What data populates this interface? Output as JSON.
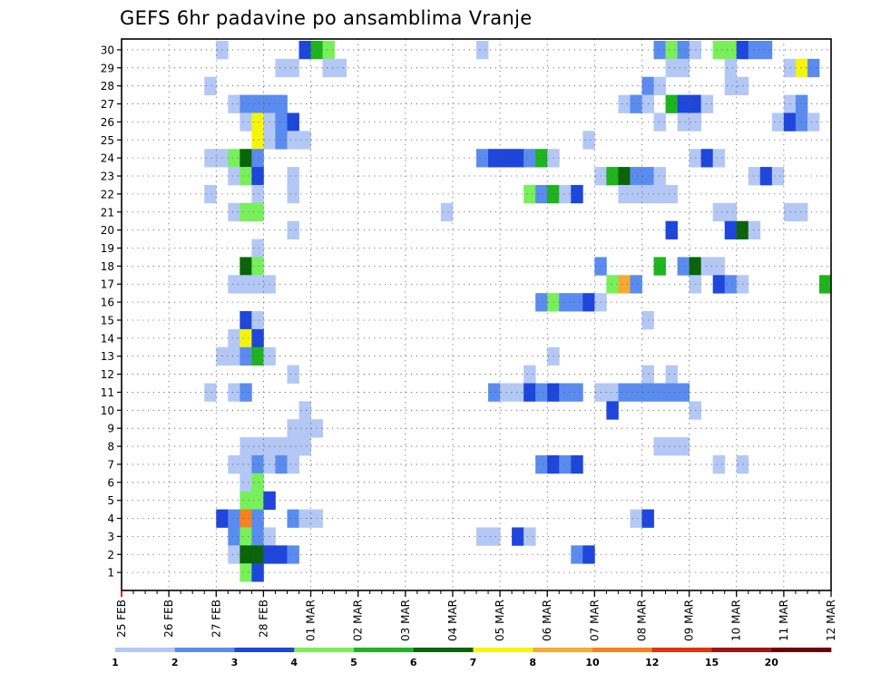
{
  "chart_data": {
    "type": "heatmap",
    "title": "GEFS 6hr padavine po ansamblima Vranje",
    "xlabel": "",
    "ylabel": "",
    "y_categories": [
      1,
      2,
      3,
      4,
      5,
      6,
      7,
      8,
      9,
      10,
      11,
      12,
      13,
      14,
      15,
      16,
      17,
      18,
      19,
      20,
      21,
      22,
      23,
      24,
      25,
      26,
      27,
      28,
      29,
      30
    ],
    "x_tick_labels": [
      "25 FEB",
      "26 FEB",
      "27 FEB",
      "28 FEB",
      "01 MAR",
      "02 MAR",
      "03 MAR",
      "04 MAR",
      "05 MAR",
      "06 MAR",
      "07 MAR",
      "08 MAR",
      "09 MAR",
      "10 MAR",
      "11 MAR",
      "12 MAR"
    ],
    "x_step_hours": 6,
    "grid": true,
    "legend": "bottom",
    "colorbar": {
      "labels": [
        "1",
        "2",
        "3",
        "4",
        "5",
        "6",
        "7",
        "8",
        "10",
        "12",
        "15",
        "20"
      ],
      "colors": [
        "#b4c8f5",
        "#5a8cf0",
        "#1e46dc",
        "#78f05a",
        "#1eb41e",
        "#0a640a",
        "#f5f50a",
        "#f5aa32",
        "#f5821e",
        "#e6320a",
        "#a01414",
        "#6e0000"
      ]
    },
    "cells": [
      [
        30,
        8,
        1
      ],
      [
        30,
        15,
        3
      ],
      [
        30,
        16,
        5
      ],
      [
        30,
        17,
        4
      ],
      [
        30,
        30,
        1
      ],
      [
        30,
        45,
        2
      ],
      [
        30,
        46,
        4
      ],
      [
        30,
        47,
        2
      ],
      [
        30,
        48,
        1
      ],
      [
        30,
        50,
        4
      ],
      [
        30,
        51,
        4
      ],
      [
        30,
        52,
        3
      ],
      [
        30,
        53,
        2
      ],
      [
        30,
        54,
        2
      ],
      [
        29,
        13,
        1
      ],
      [
        29,
        14,
        1
      ],
      [
        29,
        17,
        1
      ],
      [
        29,
        18,
        1
      ],
      [
        29,
        46,
        1
      ],
      [
        29,
        47,
        1
      ],
      [
        29,
        51,
        1
      ],
      [
        29,
        56,
        1
      ],
      [
        29,
        57,
        7
      ],
      [
        29,
        58,
        2
      ],
      [
        28,
        7,
        1
      ],
      [
        28,
        44,
        2
      ],
      [
        28,
        45,
        1
      ],
      [
        28,
        51,
        1
      ],
      [
        28,
        52,
        1
      ],
      [
        27,
        9,
        1
      ],
      [
        27,
        10,
        2
      ],
      [
        27,
        11,
        2
      ],
      [
        27,
        12,
        2
      ],
      [
        27,
        13,
        2
      ],
      [
        27,
        42,
        1
      ],
      [
        27,
        43,
        2
      ],
      [
        27,
        44,
        1
      ],
      [
        27,
        46,
        5
      ],
      [
        27,
        47,
        3
      ],
      [
        27,
        48,
        3
      ],
      [
        27,
        49,
        1
      ],
      [
        27,
        56,
        1
      ],
      [
        27,
        57,
        2
      ],
      [
        26,
        10,
        1
      ],
      [
        26,
        11,
        7
      ],
      [
        26,
        12,
        1
      ],
      [
        26,
        13,
        2
      ],
      [
        26,
        14,
        3
      ],
      [
        26,
        45,
        1
      ],
      [
        26,
        47,
        1
      ],
      [
        26,
        48,
        1
      ],
      [
        26,
        55,
        1
      ],
      [
        26,
        56,
        3
      ],
      [
        26,
        57,
        2
      ],
      [
        26,
        58,
        1
      ],
      [
        25,
        11,
        7
      ],
      [
        25,
        12,
        1
      ],
      [
        25,
        13,
        2
      ],
      [
        25,
        14,
        1
      ],
      [
        25,
        15,
        1
      ],
      [
        25,
        39,
        1
      ],
      [
        24,
        7,
        1
      ],
      [
        24,
        8,
        1
      ],
      [
        24,
        9,
        4
      ],
      [
        24,
        10,
        6
      ],
      [
        24,
        11,
        2
      ],
      [
        24,
        30,
        2
      ],
      [
        24,
        31,
        3
      ],
      [
        24,
        32,
        3
      ],
      [
        24,
        33,
        3
      ],
      [
        24,
        34,
        2
      ],
      [
        24,
        35,
        5
      ],
      [
        24,
        36,
        1
      ],
      [
        24,
        48,
        1
      ],
      [
        24,
        49,
        3
      ],
      [
        24,
        50,
        1
      ],
      [
        23,
        9,
        1
      ],
      [
        23,
        10,
        4
      ],
      [
        23,
        11,
        3
      ],
      [
        23,
        14,
        1
      ],
      [
        23,
        40,
        1
      ],
      [
        23,
        41,
        5
      ],
      [
        23,
        42,
        6
      ],
      [
        23,
        43,
        2
      ],
      [
        23,
        44,
        2
      ],
      [
        23,
        45,
        1
      ],
      [
        23,
        53,
        1
      ],
      [
        23,
        54,
        3
      ],
      [
        23,
        55,
        1
      ],
      [
        22,
        7,
        1
      ],
      [
        22,
        11,
        1
      ],
      [
        22,
        14,
        1
      ],
      [
        22,
        34,
        4
      ],
      [
        22,
        35,
        2
      ],
      [
        22,
        36,
        5
      ],
      [
        22,
        37,
        1
      ],
      [
        22,
        38,
        3
      ],
      [
        22,
        42,
        1
      ],
      [
        22,
        43,
        1
      ],
      [
        22,
        44,
        1
      ],
      [
        22,
        45,
        1
      ],
      [
        22,
        46,
        1
      ],
      [
        21,
        9,
        1
      ],
      [
        21,
        10,
        4
      ],
      [
        21,
        11,
        4
      ],
      [
        21,
        27,
        1
      ],
      [
        21,
        50,
        1
      ],
      [
        21,
        51,
        1
      ],
      [
        21,
        56,
        1
      ],
      [
        21,
        57,
        1
      ],
      [
        20,
        14,
        1
      ],
      [
        20,
        46,
        3
      ],
      [
        20,
        51,
        3
      ],
      [
        20,
        52,
        6
      ],
      [
        20,
        53,
        1
      ],
      [
        19,
        11,
        1
      ],
      [
        18,
        10,
        6
      ],
      [
        18,
        11,
        4
      ],
      [
        18,
        40,
        2
      ],
      [
        18,
        45,
        5
      ],
      [
        18,
        47,
        2
      ],
      [
        18,
        48,
        6
      ],
      [
        18,
        49,
        1
      ],
      [
        18,
        50,
        1
      ],
      [
        17,
        9,
        1
      ],
      [
        17,
        10,
        1
      ],
      [
        17,
        11,
        1
      ],
      [
        17,
        12,
        1
      ],
      [
        17,
        41,
        4
      ],
      [
        17,
        42,
        8
      ],
      [
        17,
        43,
        2
      ],
      [
        17,
        48,
        1
      ],
      [
        17,
        50,
        3
      ],
      [
        17,
        51,
        2
      ],
      [
        17,
        52,
        1
      ],
      [
        17,
        59,
        5
      ],
      [
        16,
        35,
        2
      ],
      [
        16,
        36,
        4
      ],
      [
        16,
        37,
        2
      ],
      [
        16,
        38,
        2
      ],
      [
        16,
        39,
        3
      ],
      [
        16,
        40,
        1
      ],
      [
        15,
        10,
        3
      ],
      [
        15,
        11,
        1
      ],
      [
        15,
        44,
        1
      ],
      [
        14,
        9,
        1
      ],
      [
        14,
        10,
        7
      ],
      [
        14,
        11,
        3
      ],
      [
        13,
        8,
        1
      ],
      [
        13,
        9,
        1
      ],
      [
        13,
        10,
        2
      ],
      [
        13,
        11,
        5
      ],
      [
        13,
        12,
        1
      ],
      [
        13,
        36,
        1
      ],
      [
        12,
        14,
        1
      ],
      [
        12,
        34,
        1
      ],
      [
        12,
        44,
        1
      ],
      [
        12,
        46,
        1
      ],
      [
        11,
        7,
        1
      ],
      [
        11,
        9,
        1
      ],
      [
        11,
        10,
        2
      ],
      [
        11,
        31,
        2
      ],
      [
        11,
        32,
        1
      ],
      [
        11,
        33,
        1
      ],
      [
        11,
        34,
        3
      ],
      [
        11,
        35,
        2
      ],
      [
        11,
        36,
        3
      ],
      [
        11,
        37,
        2
      ],
      [
        11,
        38,
        2
      ],
      [
        11,
        40,
        1
      ],
      [
        11,
        41,
        1
      ],
      [
        11,
        42,
        2
      ],
      [
        11,
        43,
        2
      ],
      [
        11,
        44,
        2
      ],
      [
        11,
        45,
        2
      ],
      [
        11,
        46,
        2
      ],
      [
        11,
        47,
        2
      ],
      [
        10,
        15,
        1
      ],
      [
        10,
        41,
        3
      ],
      [
        10,
        48,
        1
      ],
      [
        9,
        14,
        1
      ],
      [
        9,
        15,
        1
      ],
      [
        9,
        16,
        1
      ],
      [
        8,
        10,
        1
      ],
      [
        8,
        11,
        1
      ],
      [
        8,
        12,
        1
      ],
      [
        8,
        13,
        1
      ],
      [
        8,
        14,
        1
      ],
      [
        8,
        15,
        1
      ],
      [
        8,
        45,
        1
      ],
      [
        8,
        46,
        1
      ],
      [
        8,
        47,
        1
      ],
      [
        7,
        9,
        1
      ],
      [
        7,
        10,
        1
      ],
      [
        7,
        11,
        2
      ],
      [
        7,
        12,
        1
      ],
      [
        7,
        13,
        2
      ],
      [
        7,
        14,
        1
      ],
      [
        7,
        35,
        2
      ],
      [
        7,
        36,
        3
      ],
      [
        7,
        37,
        2
      ],
      [
        7,
        38,
        3
      ],
      [
        7,
        50,
        1
      ],
      [
        7,
        52,
        1
      ],
      [
        6,
        10,
        1
      ],
      [
        6,
        11,
        4
      ],
      [
        5,
        10,
        4
      ],
      [
        5,
        11,
        4
      ],
      [
        5,
        12,
        3
      ],
      [
        4,
        8,
        3
      ],
      [
        4,
        9,
        2
      ],
      [
        4,
        10,
        9
      ],
      [
        4,
        11,
        2
      ],
      [
        4,
        14,
        2
      ],
      [
        4,
        15,
        1
      ],
      [
        4,
        16,
        1
      ],
      [
        4,
        43,
        1
      ],
      [
        4,
        44,
        3
      ],
      [
        3,
        9,
        2
      ],
      [
        3,
        10,
        4
      ],
      [
        3,
        11,
        2
      ],
      [
        3,
        12,
        1
      ],
      [
        3,
        30,
        1
      ],
      [
        3,
        31,
        1
      ],
      [
        3,
        33,
        3
      ],
      [
        3,
        34,
        1
      ],
      [
        2,
        9,
        1
      ],
      [
        2,
        10,
        6
      ],
      [
        2,
        11,
        6
      ],
      [
        2,
        12,
        3
      ],
      [
        2,
        13,
        3
      ],
      [
        2,
        14,
        2
      ],
      [
        2,
        38,
        2
      ],
      [
        2,
        39,
        3
      ],
      [
        1,
        10,
        4
      ],
      [
        1,
        11,
        3
      ]
    ]
  }
}
